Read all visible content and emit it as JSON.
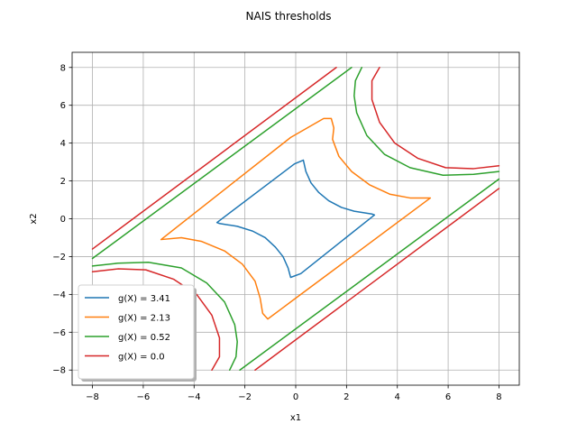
{
  "chart_data": {
    "type": "line",
    "title": "NAIS thresholds",
    "xlabel": "x1",
    "ylabel": "x2",
    "xlim": [
      -8.8,
      8.8
    ],
    "ylim": [
      -8.8,
      8.8
    ],
    "xticks": [
      -8,
      -6,
      -4,
      -2,
      0,
      2,
      4,
      6,
      8
    ],
    "yticks": [
      -8,
      -6,
      -4,
      -2,
      0,
      2,
      4,
      6,
      8
    ],
    "xtick_labels": [
      "−8",
      "−6",
      "−4",
      "−2",
      "0",
      "2",
      "4",
      "6",
      "8"
    ],
    "ytick_labels": [
      "−8",
      "−6",
      "−4",
      "−2",
      "0",
      "2",
      "4",
      "6",
      "8"
    ],
    "grid": true,
    "legend_position": "lower-left",
    "series": [
      {
        "name": "g(X) = 3.41",
        "color": "#1f77b4",
        "segments": [
          [
            [
              0.3,
              3.1
            ],
            [
              0.4,
              2.5
            ],
            [
              0.6,
              1.9
            ],
            [
              0.9,
              1.4
            ],
            [
              1.3,
              0.95
            ],
            [
              1.8,
              0.6
            ],
            [
              2.3,
              0.4
            ],
            [
              3.0,
              0.25
            ],
            [
              3.1,
              0.2
            ],
            [
              0.2,
              -2.9
            ],
            [
              -0.2,
              -3.1
            ],
            [
              -0.3,
              -2.6
            ],
            [
              -0.5,
              -2.0
            ],
            [
              -0.8,
              -1.5
            ],
            [
              -1.2,
              -1.0
            ],
            [
              -1.7,
              -0.65
            ],
            [
              -2.3,
              -0.4
            ],
            [
              -3.0,
              -0.25
            ],
            [
              -3.1,
              -0.2
            ],
            [
              -0.05,
              2.9
            ],
            [
              0.3,
              3.1
            ]
          ]
        ]
      },
      {
        "name": "g(X) = 2.13",
        "color": "#ff7f0e",
        "segments": [
          [
            [
              1.4,
              5.3
            ],
            [
              1.5,
              4.8
            ],
            [
              1.45,
              4.2
            ],
            [
              1.7,
              3.3
            ],
            [
              2.2,
              2.5
            ],
            [
              2.9,
              1.8
            ],
            [
              3.7,
              1.3
            ],
            [
              4.5,
              1.1
            ],
            [
              5.3,
              1.1
            ],
            [
              -0.1,
              -4.3
            ],
            [
              -0.5,
              -4.7
            ],
            [
              -1.1,
              -5.3
            ],
            [
              -1.3,
              -5.0
            ],
            [
              -1.4,
              -4.2
            ],
            [
              -1.6,
              -3.3
            ],
            [
              -2.1,
              -2.4
            ],
            [
              -2.8,
              -1.7
            ],
            [
              -3.7,
              -1.2
            ],
            [
              -4.5,
              -1.0
            ],
            [
              -5.3,
              -1.1
            ],
            [
              -0.2,
              4.3
            ],
            [
              1.1,
              5.3
            ],
            [
              1.4,
              5.3
            ]
          ]
        ]
      },
      {
        "name": "g(X) = 0.52",
        "color": "#2ca02c",
        "segments": [
          [
            [
              -8.0,
              -2.1
            ],
            [
              2.2,
              8.0
            ]
          ],
          [
            [
              2.6,
              8.0
            ],
            [
              2.35,
              7.3
            ],
            [
              2.3,
              6.5
            ],
            [
              2.4,
              5.6
            ],
            [
              2.8,
              4.4
            ],
            [
              3.5,
              3.4
            ],
            [
              4.5,
              2.7
            ],
            [
              5.8,
              2.3
            ],
            [
              7.0,
              2.35
            ],
            [
              8.0,
              2.5
            ]
          ],
          [
            [
              -8.0,
              -2.5
            ],
            [
              -7.0,
              -2.35
            ],
            [
              -5.8,
              -2.3
            ],
            [
              -4.5,
              -2.6
            ],
            [
              -3.5,
              -3.4
            ],
            [
              -2.8,
              -4.4
            ],
            [
              -2.4,
              -5.6
            ],
            [
              -2.3,
              -6.5
            ],
            [
              -2.35,
              -7.3
            ],
            [
              -2.6,
              -8.0
            ]
          ],
          [
            [
              -2.2,
              -8.0
            ],
            [
              8.0,
              2.1
            ]
          ]
        ]
      },
      {
        "name": "g(X) = 0.0",
        "color": "#d62728",
        "segments": [
          [
            [
              -8.0,
              -1.6
            ],
            [
              1.6,
              8.0
            ]
          ],
          [
            [
              3.3,
              8.0
            ],
            [
              3.0,
              7.3
            ],
            [
              3.0,
              6.3
            ],
            [
              3.3,
              5.1
            ],
            [
              3.9,
              4.0
            ],
            [
              4.8,
              3.2
            ],
            [
              5.9,
              2.7
            ],
            [
              7.0,
              2.65
            ],
            [
              8.0,
              2.8
            ]
          ],
          [
            [
              -8.0,
              -2.8
            ],
            [
              -7.0,
              -2.65
            ],
            [
              -5.9,
              -2.7
            ],
            [
              -4.8,
              -3.2
            ],
            [
              -3.9,
              -4.0
            ],
            [
              -3.3,
              -5.1
            ],
            [
              -3.0,
              -6.3
            ],
            [
              -3.0,
              -7.3
            ],
            [
              -3.3,
              -8.0
            ]
          ],
          [
            [
              -1.6,
              -8.0
            ],
            [
              8.0,
              1.6
            ]
          ]
        ]
      }
    ]
  }
}
